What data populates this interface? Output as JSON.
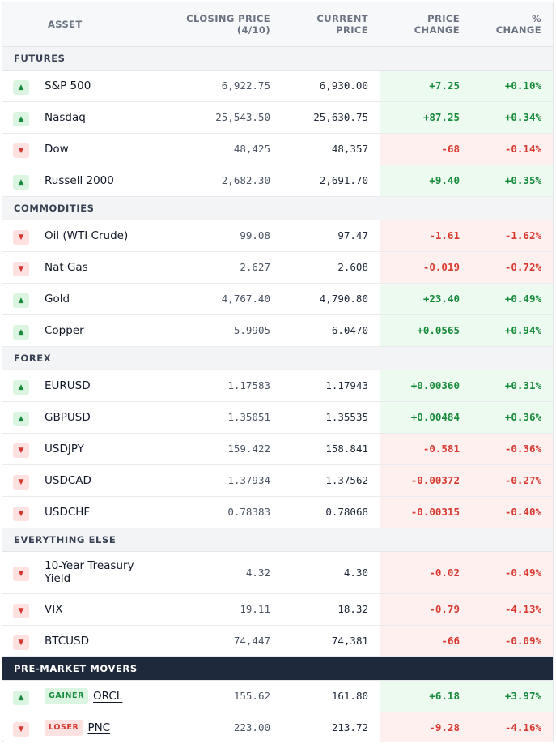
{
  "headers": {
    "asset": "ASSET",
    "closing": "CLOSING PRICE",
    "closing_sub": "(4/10)",
    "current": "CURRENT",
    "current_sub": "PRICE",
    "price_change": "PRICE",
    "price_change_sub": "CHANGE",
    "pct": "%",
    "pct_sub": "CHANGE"
  },
  "sections": {
    "futures": {
      "title": "FUTURES",
      "rows": [
        {
          "asset": "S&P 500",
          "close": "6,922.75",
          "current": "6,930.00",
          "change": "+7.25",
          "pct": "+0.10%",
          "direction": "up"
        },
        {
          "asset": "Nasdaq",
          "close": "25,543.50",
          "current": "25,630.75",
          "change": "+87.25",
          "pct": "+0.34%",
          "direction": "up"
        },
        {
          "asset": "Dow",
          "close": "48,425",
          "current": "48,357",
          "change": "-68",
          "pct": "-0.14%",
          "direction": "down"
        },
        {
          "asset": "Russell 2000",
          "close": "2,682.30",
          "current": "2,691.70",
          "change": "+9.40",
          "pct": "+0.35%",
          "direction": "up"
        }
      ]
    },
    "commodities": {
      "title": "COMMODITIES",
      "rows": [
        {
          "asset": "Oil (WTI Crude)",
          "close": "99.08",
          "current": "97.47",
          "change": "-1.61",
          "pct": "-1.62%",
          "direction": "down"
        },
        {
          "asset": "Nat Gas",
          "close": "2.627",
          "current": "2.608",
          "change": "-0.019",
          "pct": "-0.72%",
          "direction": "down"
        },
        {
          "asset": "Gold",
          "close": "4,767.40",
          "current": "4,790.80",
          "change": "+23.40",
          "pct": "+0.49%",
          "direction": "up"
        },
        {
          "asset": "Copper",
          "close": "5.9905",
          "current": "6.0470",
          "change": "+0.0565",
          "pct": "+0.94%",
          "direction": "up"
        }
      ]
    },
    "forex": {
      "title": "FOREX",
      "rows": [
        {
          "asset": "EURUSD",
          "close": "1.17583",
          "current": "1.17943",
          "change": "+0.00360",
          "pct": "+0.31%",
          "direction": "up"
        },
        {
          "asset": "GBPUSD",
          "close": "1.35051",
          "current": "1.35535",
          "change": "+0.00484",
          "pct": "+0.36%",
          "direction": "up"
        },
        {
          "asset": "USDJPY",
          "close": "159.422",
          "current": "158.841",
          "change": "-0.581",
          "pct": "-0.36%",
          "direction": "down"
        },
        {
          "asset": "USDCAD",
          "close": "1.37934",
          "current": "1.37562",
          "change": "-0.00372",
          "pct": "-0.27%",
          "direction": "down"
        },
        {
          "asset": "USDCHF",
          "close": "0.78383",
          "current": "0.78068",
          "change": "-0.00315",
          "pct": "-0.40%",
          "direction": "down"
        }
      ]
    },
    "everything_else": {
      "title": "EVERYTHING ELSE",
      "rows": [
        {
          "asset": "10-Year Treasury Yield",
          "close": "4.32",
          "current": "4.30",
          "change": "-0.02",
          "pct": "-0.49%",
          "direction": "down"
        },
        {
          "asset": "VIX",
          "close": "19.11",
          "current": "18.32",
          "change": "-0.79",
          "pct": "-4.13%",
          "direction": "down"
        },
        {
          "asset": "BTCUSD",
          "close": "74,447",
          "current": "74,381",
          "change": "-66",
          "pct": "-0.09%",
          "direction": "down"
        }
      ]
    },
    "premarket": {
      "title": "PRE-MARKET MOVERS",
      "rows": [
        {
          "tag": "GAINER",
          "asset": "ORCL",
          "close": "155.62",
          "current": "161.80",
          "change": "+6.18",
          "pct": "+3.97%",
          "direction": "up"
        },
        {
          "tag": "LOSER",
          "asset": "PNC",
          "close": "223.00",
          "current": "213.72",
          "change": "-9.28",
          "pct": "-4.16%",
          "direction": "down"
        }
      ]
    }
  },
  "icons": {
    "up": "▲",
    "down": "▼",
    "up_name": "arrow-up-icon",
    "down_name": "arrow-down-icon"
  },
  "colors": {
    "positive": "#178a3b",
    "negative": "#d83b31",
    "positive_bg": "#ecfaf0",
    "negative_bg": "#fdf0ef",
    "dark_header": "#1e2a3b"
  }
}
